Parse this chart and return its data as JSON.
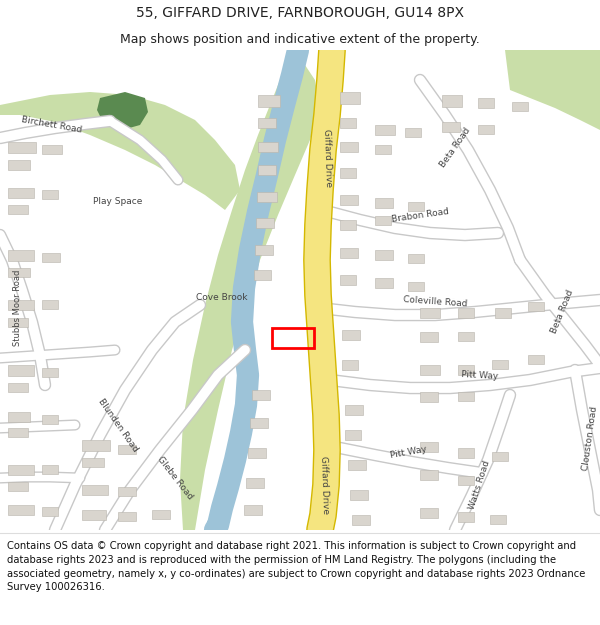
{
  "title": "55, GIFFARD DRIVE, FARNBOROUGH, GU14 8PX",
  "subtitle": "Map shows position and indicative extent of the property.",
  "footer": "Contains OS data © Crown copyright and database right 2021. This information is subject to Crown copyright and database rights 2023 and is reproduced with the permission of HM Land Registry. The polygons (including the associated geometry, namely x, y co-ordinates) are subject to Crown copyright and database rights 2023 Ordnance Survey 100026316.",
  "title_fontsize": 10,
  "subtitle_fontsize": 9,
  "footer_fontsize": 7.2,
  "bg_color": "#ffffff",
  "map_bg": "#f2f0ed",
  "road_main_color": "#f5e580",
  "road_main_edge": "#d4b800",
  "road_secondary_color": "#ffffff",
  "road_secondary_edge": "#c8c8c8",
  "green_color": "#c9dea8",
  "dark_green_color": "#5a8a50",
  "water_color": "#9dc3d8",
  "building_color": "#d9d5ce",
  "building_edge": "#b8b4ac",
  "marker_color": "#ff0000",
  "text_color": "#222222",
  "road_label_color": "#444444"
}
